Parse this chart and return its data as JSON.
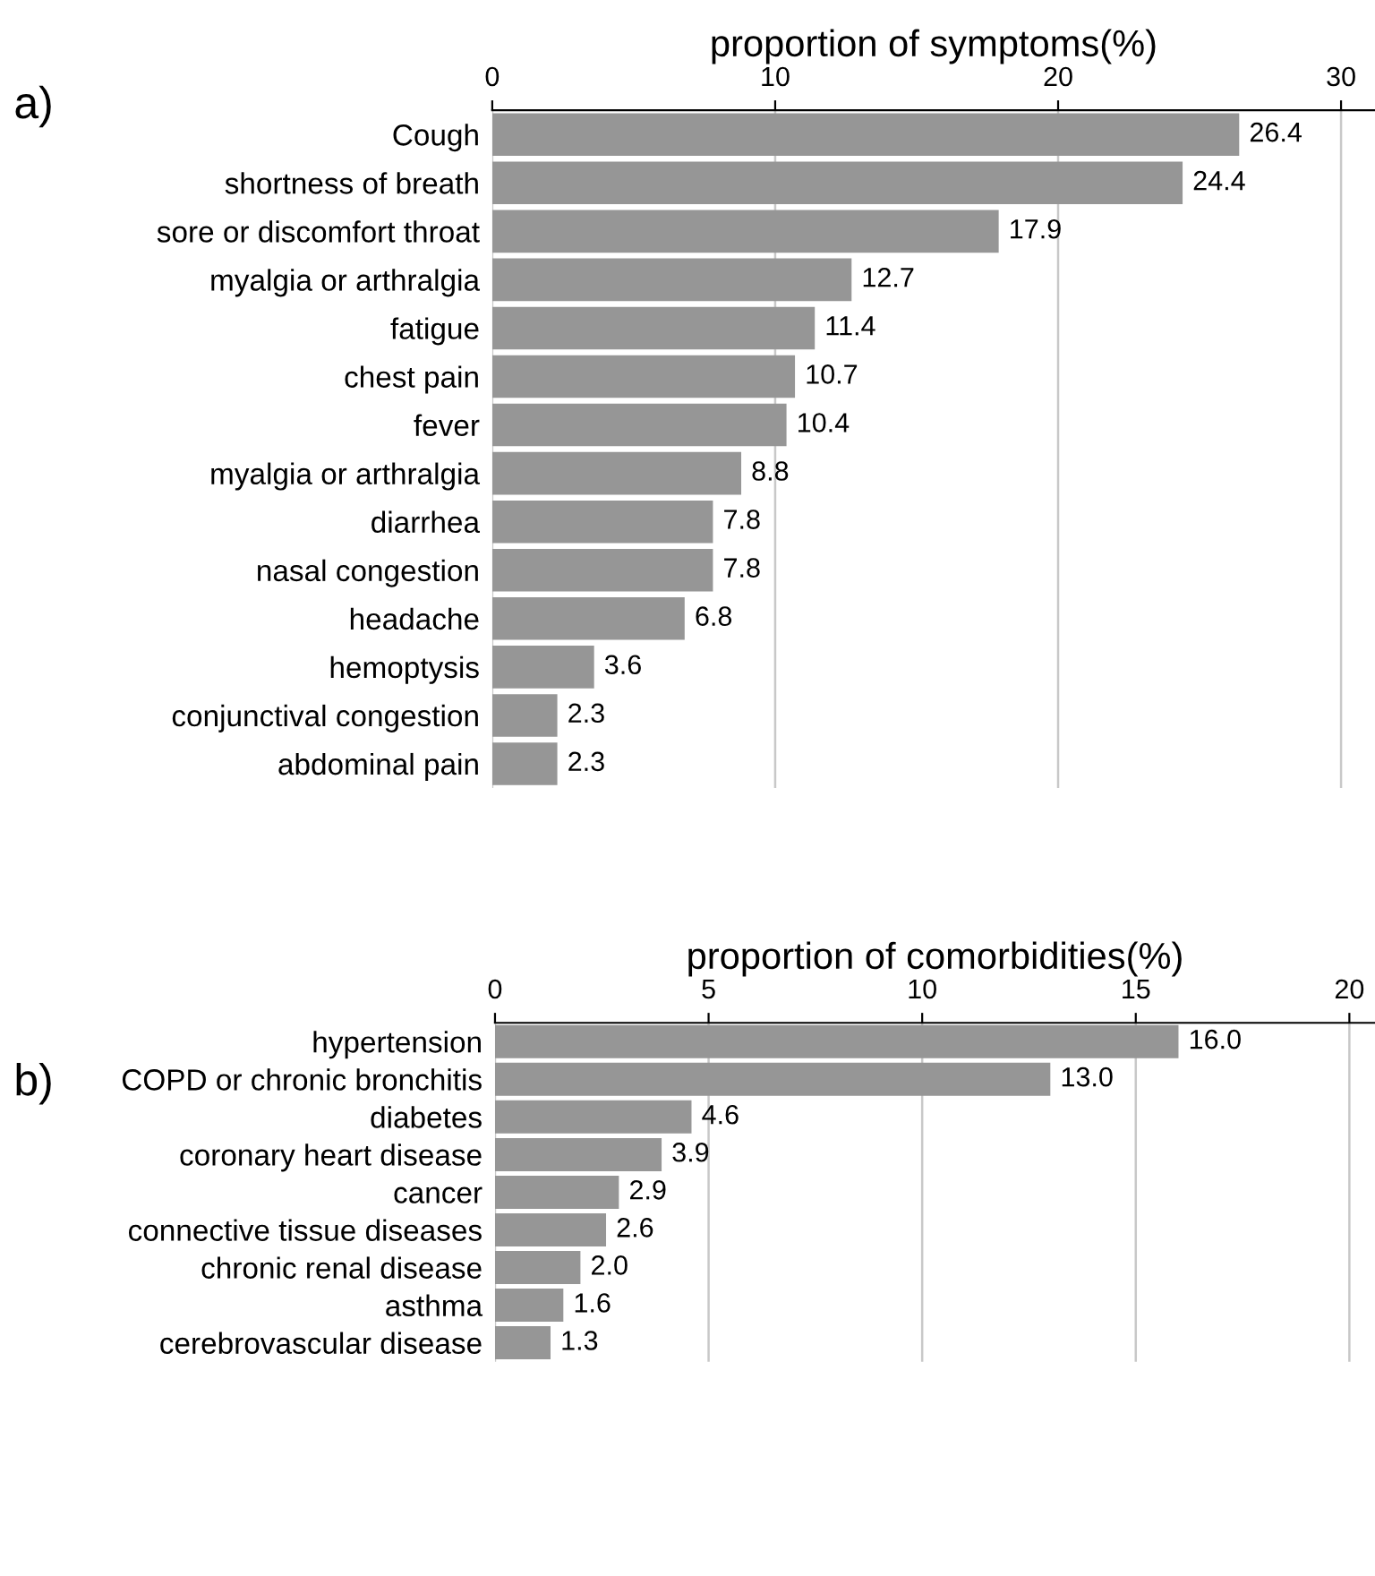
{
  "chart_data": [
    {
      "type": "bar",
      "orientation": "horizontal",
      "xlabel": "proportion of symptoms(%)",
      "annotations": [
        "a)"
      ],
      "categories": [
        "Cough",
        "shortness of breath",
        "sore or discomfort throat",
        "myalgia or arthralgia",
        "fatigue",
        "chest pain",
        "fever",
        "myalgia or arthralgia",
        "diarrhea",
        "nasal congestion",
        "headache",
        "hemoptysis",
        "conjunctival congestion",
        "abdominal pain"
      ],
      "values": [
        26.4,
        24.4,
        17.9,
        12.7,
        11.4,
        10.7,
        10.4,
        8.8,
        7.8,
        7.8,
        6.8,
        3.6,
        2.3,
        2.3
      ],
      "color": "#969696",
      "xlim": [
        0,
        31.2
      ],
      "xticks": [
        0,
        10,
        20,
        30
      ],
      "grid": "x",
      "data_labels": true,
      "legend": false
    },
    {
      "type": "bar",
      "orientation": "horizontal",
      "xlabel": "proportion of comorbidities(%)",
      "annotations": [
        "b)"
      ],
      "categories": [
        "hypertension",
        "COPD or chronic bronchitis",
        "diabetes",
        "coronary heart disease",
        "cancer",
        "connective tissue diseases",
        "chronic renal disease",
        "asthma",
        "cerebrovascular disease"
      ],
      "values": [
        16.0,
        13.0,
        4.6,
        3.9,
        2.9,
        2.6,
        2.0,
        1.6,
        1.3
      ],
      "value_labels": [
        "16.0",
        "13.0",
        "4.6",
        "3.9",
        "2.9",
        "2.6",
        "2.0",
        "1.6",
        "1.3"
      ],
      "color": "#969696",
      "xlim": [
        0,
        20.6
      ],
      "xticks": [
        0,
        5,
        10,
        15,
        20
      ],
      "grid": "x",
      "legend": false
    }
  ]
}
